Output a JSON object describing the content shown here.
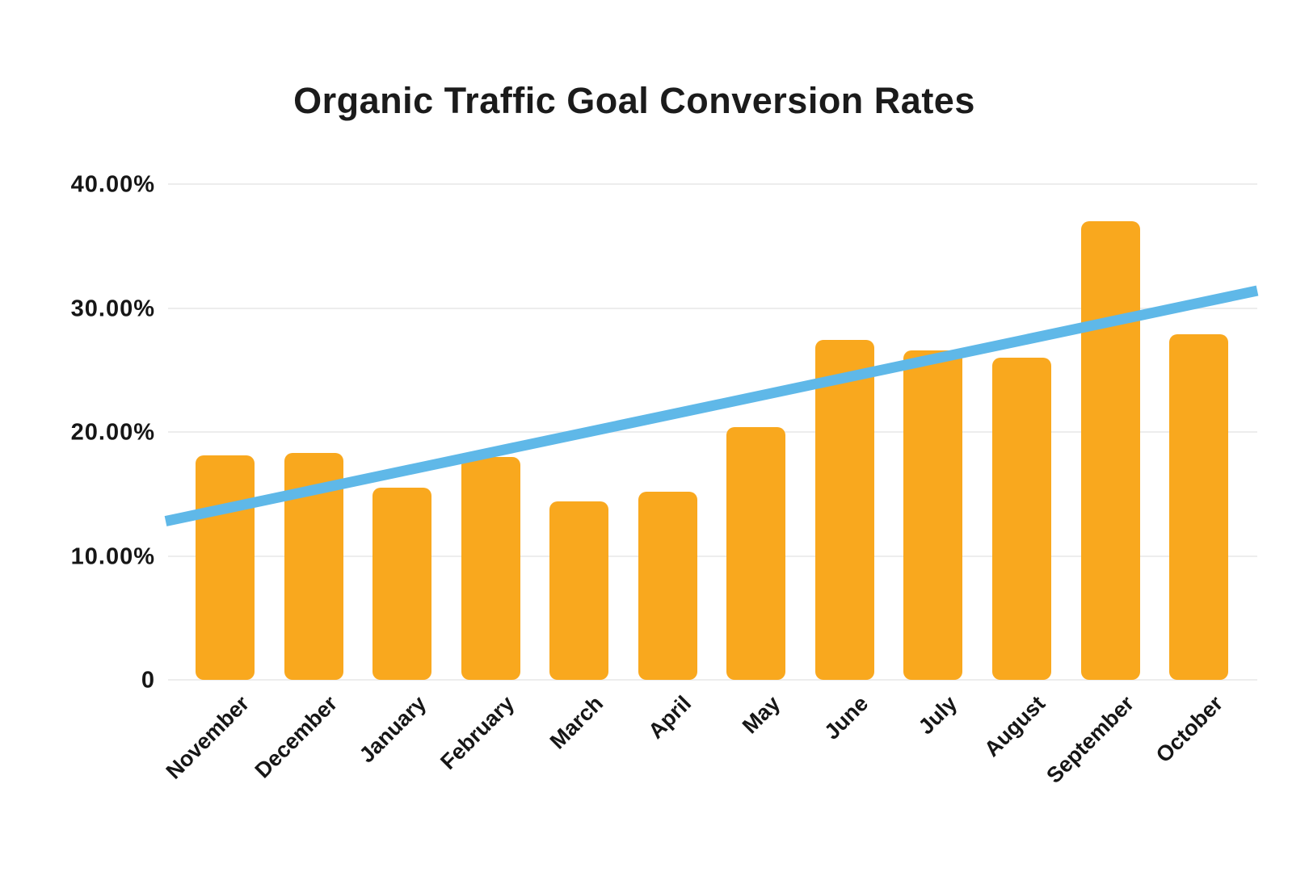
{
  "chart_data": {
    "type": "bar",
    "title": "Organic Traffic Goal Conversion Rates",
    "categories": [
      "November",
      "December",
      "January",
      "February",
      "March",
      "April",
      "May",
      "June",
      "July",
      "August",
      "September",
      "October"
    ],
    "values": [
      18.1,
      18.3,
      15.5,
      18.0,
      14.4,
      15.2,
      20.4,
      27.4,
      26.6,
      26.0,
      37.0,
      27.9
    ],
    "value_unit": "%",
    "trend_line": {
      "type": "line",
      "start_value": 12.8,
      "end_value": 31.4
    },
    "ylim": [
      0,
      40
    ],
    "yticks": [
      {
        "value": 40,
        "label": "40.00%"
      },
      {
        "value": 30,
        "label": "30.00%"
      },
      {
        "value": 20,
        "label": "20.00%"
      },
      {
        "value": 10,
        "label": "10.00%"
      },
      {
        "value": 0,
        "label": "0"
      }
    ],
    "grid": true,
    "legend": "none",
    "colors": {
      "bar": "#F9A81E",
      "trend_line": "#5FB8E8",
      "gridline": "#EDEDED",
      "title_text": "#1B1B1B",
      "axis_text": "#161616",
      "background": "#FFFFFF"
    }
  }
}
